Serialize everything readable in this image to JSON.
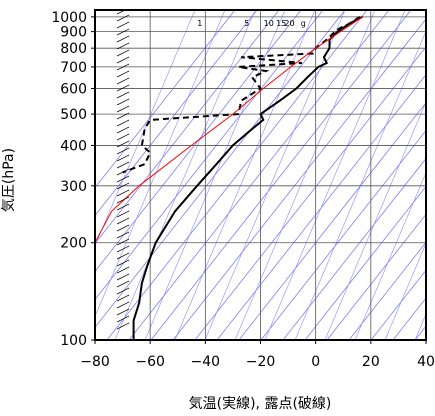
{
  "chart_data": {
    "type": "line",
    "xlabel": "気温(実線), 露点(破線)",
    "ylabel": "気圧(hPa)",
    "xlim": [
      -80,
      40
    ],
    "ylim": [
      1050,
      100
    ],
    "y_scale": "log",
    "x_ticks": [
      -80,
      -60,
      -40,
      -20,
      0,
      20,
      40
    ],
    "x_tick_labels": [
      "−80",
      "−60",
      "−40",
      "−20",
      "0",
      "20",
      "40"
    ],
    "y_ticks": [
      100,
      200,
      300,
      400,
      500,
      600,
      700,
      800,
      900,
      1000
    ],
    "y_tick_labels": [
      "100",
      "200",
      "300",
      "400",
      "500",
      "600",
      "700",
      "800",
      "900",
      "1000"
    ],
    "grid": true,
    "mixing_ratio_labels": [
      {
        "text": "1",
        "x": -42
      },
      {
        "text": "5",
        "x": -25
      },
      {
        "text": "10",
        "x": -17
      },
      {
        "text": "15",
        "x": -12.5
      },
      {
        "text": "20",
        "x": -9.5
      },
      {
        "text": "g",
        "x": -4.5
      }
    ],
    "series": [
      {
        "style": "solid",
        "color": "#000000",
        "pressure": [
          1000,
          950,
          925,
          900,
          850,
          800,
          750,
          720,
          700,
          650,
          600,
          550,
          500,
          480,
          450,
          400,
          350,
          300,
          250,
          200,
          170,
          150,
          130,
          115,
          105,
          100
        ],
        "temperature": [
          17,
          12,
          10,
          8,
          5,
          5,
          3,
          4,
          1,
          -3,
          -7,
          -13,
          -20,
          -19,
          -23,
          -30,
          -36,
          -43,
          -51,
          -58,
          -61,
          -63,
          -64,
          -66,
          -66,
          -66
        ]
      },
      {
        "style": "dashed",
        "color": "#000000",
        "pressure": [
          1000,
          950,
          925,
          900,
          850,
          800,
          770,
          750,
          720,
          700,
          680,
          650,
          600,
          550,
          500,
          480,
          450,
          400,
          380,
          350,
          330
        ],
        "temperature": [
          16,
          12,
          9,
          7,
          4,
          0,
          -1,
          -27,
          -5,
          -28,
          -18,
          -23,
          -20,
          -27,
          -28,
          -60,
          -62,
          -63,
          -60,
          -62,
          -70
        ]
      },
      {
        "style": "solid",
        "color": "#ff0000",
        "pressure": [
          1000,
          900,
          800,
          700,
          600,
          500,
          400,
          300,
          250,
          200
        ],
        "temperature": [
          17,
          9,
          0,
          -9,
          -19,
          -30,
          -45,
          -64,
          -74,
          -80
        ]
      }
    ],
    "wind_barbs_x": -72
  }
}
